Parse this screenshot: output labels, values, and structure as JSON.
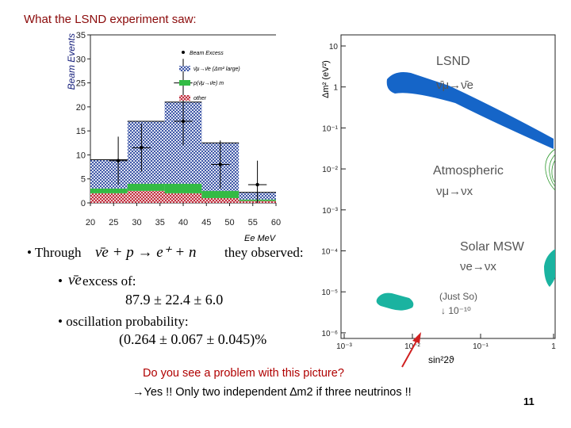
{
  "slide": {
    "title": "What the LSND experiment saw:",
    "page_number": "11",
    "question": "Do you see a problem with this picture?",
    "answer": "→Yes !! Only two independent ∆m2 if three neutrinos !!"
  },
  "bullets": {
    "through_label": "• Through",
    "reaction": "ν̄e + p → e⁺ + n",
    "observed_label": "they observed:",
    "excess_prefix": "•",
    "excess_symbol": "ν̄e",
    "excess_label": "excess of:",
    "excess_value": "87.9 ± 22.4 ± 6.0",
    "oscillation_label": "• oscillation probability:",
    "oscillation_value": "(0.264 ± 0.067 ± 0.045)%"
  },
  "histogram": {
    "ylabel": "Beam Events",
    "xlabel": "Ee MeV",
    "legend": [
      "Beam Excess",
      "ν̄μ→ν̄e (Δm² large)",
      "p(ν̄μ→ν̄e) m",
      "other"
    ],
    "colors": {
      "signal": "#4058a8",
      "green": "#33bb44",
      "red": "#c03040"
    }
  },
  "osc_plot": {
    "ylabel": "Δm² (eV²)",
    "xlabel": "sin²2ϑ",
    "regions": {
      "lsnd": "LSND",
      "lsnd_channel": "ν̄μ→ν̄e",
      "atm": "Atmospheric",
      "atm_channel": "νμ→νx",
      "solar": "Solar MSW",
      "solar_channel": "νe→νx",
      "justso": "(Just So)",
      "justso_arrow": "↓ 10⁻¹⁰"
    },
    "colors": {
      "lsnd": "#1565c8",
      "solar": "#1ab3a0",
      "atm": "#2e9a2e"
    }
  },
  "chart_data": [
    {
      "type": "bar",
      "title": "",
      "xlabel": "Ee MeV",
      "ylabel": "Beam Events",
      "xlim": [
        20,
        60
      ],
      "ylim": [
        0,
        35
      ],
      "x_ticks": [
        20,
        25,
        30,
        35,
        40,
        45,
        50,
        55,
        60
      ],
      "y_ticks": [
        0,
        5,
        10,
        15,
        20,
        25,
        30,
        35
      ],
      "bin_edges": [
        20,
        28,
        36,
        44,
        52,
        60
      ],
      "series": [
        {
          "name": "other",
          "values": [
            2.0,
            2.5,
            2.0,
            1.0,
            0.4
          ]
        },
        {
          "name": "p(ν̄μ→ν̄e)",
          "values": [
            1.0,
            1.5,
            2.0,
            1.5,
            0.3
          ]
        },
        {
          "name": "ν̄μ→ν̄e (Δm² large)",
          "values": [
            6.0,
            13.0,
            17.0,
            10.0,
            1.5
          ]
        }
      ],
      "beam_excess_points": [
        {
          "x": 26,
          "y": 8.8
        },
        {
          "x": 31,
          "y": 11.5
        },
        {
          "x": 40,
          "y": 17.0
        },
        {
          "x": 40,
          "y": 25.0
        },
        {
          "x": 48,
          "y": 8.0
        },
        {
          "x": 56,
          "y": 3.8
        }
      ]
    },
    {
      "type": "area",
      "title": "",
      "xlabel": "sin²2ϑ",
      "ylabel": "Δm² (eV²)",
      "x_log_range": [
        -3,
        0
      ],
      "y_log_range": [
        -7,
        1
      ],
      "x_tick_labels": [
        "10⁻³",
        "10⁻²",
        "10⁻¹",
        "1"
      ],
      "y_tick_labels": [
        "10",
        "1",
        "10⁻¹",
        "10⁻²",
        "10⁻³",
        "10⁻⁴",
        "10⁻⁵",
        "10⁻⁶"
      ],
      "regions": [
        {
          "name": "LSND",
          "approx_log_points": [
            [
              -2.0,
              0.3
            ],
            [
              0.0,
              -1.3
            ]
          ]
        },
        {
          "name": "Atmospheric",
          "approx_log_points": [
            [
              -0.05,
              -2.0
            ],
            [
              0.0,
              -2.4
            ]
          ]
        },
        {
          "name": "Solar MSW small-angle",
          "approx_log_points": [
            [
              -2.6,
              -5.5
            ],
            [
              -2.0,
              -5.2
            ]
          ]
        },
        {
          "name": "Solar MSW large-angle",
          "approx_log_points": [
            [
              -0.05,
              -5.0
            ],
            [
              0.0,
              -4.6
            ]
          ]
        }
      ]
    }
  ]
}
